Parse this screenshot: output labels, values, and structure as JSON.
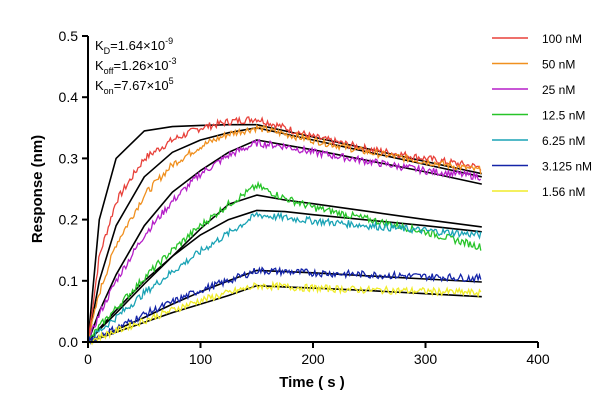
{
  "chart_data": {
    "type": "line",
    "xlabel": "Time ( s )",
    "ylabel": "Response (nm)",
    "xlim": [
      0,
      400
    ],
    "ylim": [
      0,
      0.5
    ],
    "x_ticks": [
      "0",
      "100",
      "200",
      "300",
      "400"
    ],
    "y_ticks": [
      "0.0",
      "0.1",
      "0.2",
      "0.3",
      "0.4",
      "0.5"
    ],
    "grid": false,
    "legend_position": "right",
    "association_end_s": 150,
    "annotations": {
      "kd": {
        "symbol": "K",
        "sub": "D",
        "value": "=1.64×10",
        "exp": "-9"
      },
      "koff": {
        "symbol": "K",
        "sub": "off",
        "value": "=1.26×10",
        "exp": "-3"
      },
      "kon": {
        "symbol": "K",
        "sub": "on",
        "value": "=7.67×10",
        "exp": "5"
      }
    },
    "series": [
      {
        "name": "100 nM",
        "color": "#e8413a",
        "x": [
          0,
          10,
          25,
          50,
          75,
          100,
          125,
          150,
          175,
          200,
          250,
          300,
          350
        ],
        "y": [
          0,
          0.14,
          0.23,
          0.3,
          0.33,
          0.35,
          0.36,
          0.365,
          0.35,
          0.335,
          0.315,
          0.3,
          0.285
        ]
      },
      {
        "name": "50 nM",
        "color": "#f0901f",
        "x": [
          0,
          10,
          25,
          50,
          75,
          100,
          125,
          150,
          175,
          200,
          250,
          300,
          350
        ],
        "y": [
          0,
          0.08,
          0.16,
          0.24,
          0.29,
          0.32,
          0.34,
          0.35,
          0.34,
          0.33,
          0.31,
          0.295,
          0.28
        ]
      },
      {
        "name": "25 nM",
        "color": "#b51ec8",
        "x": [
          0,
          10,
          25,
          50,
          75,
          100,
          125,
          150,
          175,
          200,
          250,
          300,
          350
        ],
        "y": [
          0,
          0.045,
          0.1,
          0.175,
          0.23,
          0.275,
          0.305,
          0.325,
          0.32,
          0.31,
          0.295,
          0.28,
          0.27
        ]
      },
      {
        "name": "12.5 nM",
        "color": "#27c429",
        "x": [
          0,
          10,
          25,
          50,
          75,
          100,
          125,
          150,
          175,
          200,
          250,
          300,
          350
        ],
        "y": [
          0,
          0.025,
          0.055,
          0.105,
          0.15,
          0.19,
          0.225,
          0.255,
          0.235,
          0.22,
          0.2,
          0.18,
          0.155
        ]
      },
      {
        "name": "6.25 nM",
        "color": "#1aa3b5",
        "x": [
          0,
          10,
          25,
          50,
          75,
          100,
          125,
          150,
          175,
          200,
          250,
          300,
          350
        ],
        "y": [
          0,
          0.018,
          0.04,
          0.08,
          0.115,
          0.148,
          0.178,
          0.208,
          0.203,
          0.198,
          0.19,
          0.182,
          0.175
        ]
      },
      {
        "name": "3.125 nM",
        "color": "#1424a8",
        "x": [
          0,
          10,
          25,
          50,
          75,
          100,
          125,
          150,
          175,
          200,
          250,
          300,
          350
        ],
        "y": [
          0,
          0.01,
          0.022,
          0.045,
          0.065,
          0.085,
          0.1,
          0.117,
          0.115,
          0.113,
          0.11,
          0.107,
          0.104
        ]
      },
      {
        "name": "1.56 nM",
        "color": "#f0ec2a",
        "x": [
          0,
          10,
          25,
          50,
          75,
          100,
          125,
          150,
          175,
          200,
          250,
          300,
          350
        ],
        "y": [
          0,
          0.008,
          0.018,
          0.035,
          0.052,
          0.068,
          0.08,
          0.092,
          0.09,
          0.088,
          0.085,
          0.083,
          0.08
        ]
      }
    ],
    "fit_series": [
      {
        "x": [
          0,
          10,
          25,
          50,
          75,
          100,
          125,
          150,
          175,
          200,
          250,
          300,
          350
        ],
        "y": [
          0,
          0.2,
          0.3,
          0.345,
          0.352,
          0.354,
          0.355,
          0.355,
          0.345,
          0.335,
          0.315,
          0.295,
          0.275
        ]
      },
      {
        "x": [
          0,
          10,
          25,
          50,
          75,
          100,
          125,
          150,
          175,
          200,
          250,
          300,
          350
        ],
        "y": [
          0,
          0.1,
          0.19,
          0.27,
          0.31,
          0.33,
          0.342,
          0.35,
          0.34,
          0.33,
          0.31,
          0.29,
          0.27
        ]
      },
      {
        "x": [
          0,
          10,
          25,
          50,
          75,
          100,
          125,
          150,
          175,
          200,
          250,
          300,
          350
        ],
        "y": [
          0,
          0.05,
          0.11,
          0.19,
          0.245,
          0.28,
          0.31,
          0.33,
          0.322,
          0.314,
          0.296,
          0.278,
          0.258
        ]
      },
      {
        "x": [
          0,
          10,
          25,
          50,
          75,
          100,
          125,
          150,
          175,
          200,
          250,
          300,
          350
        ],
        "y": [
          0,
          0.022,
          0.052,
          0.1,
          0.14,
          0.175,
          0.2,
          0.215,
          0.213,
          0.208,
          0.199,
          0.19,
          0.18
        ]
      },
      {
        "x": [
          0,
          10,
          25,
          50,
          75,
          100,
          125,
          150,
          175,
          200,
          250,
          300,
          350
        ],
        "y": [
          0,
          0.02,
          0.047,
          0.095,
          0.14,
          0.185,
          0.225,
          0.24,
          0.232,
          0.226,
          0.213,
          0.2,
          0.188
        ]
      },
      {
        "x": [
          0,
          10,
          25,
          50,
          75,
          100,
          125,
          150,
          175,
          200,
          250,
          300,
          350
        ],
        "y": [
          0,
          0.008,
          0.02,
          0.04,
          0.062,
          0.082,
          0.1,
          0.117,
          0.115,
          0.113,
          0.108,
          0.103,
          0.098
        ]
      },
      {
        "x": [
          0,
          10,
          25,
          50,
          75,
          100,
          125,
          150,
          175,
          200,
          250,
          300,
          350
        ],
        "y": [
          0,
          0.006,
          0.016,
          0.032,
          0.048,
          0.062,
          0.076,
          0.092,
          0.09,
          0.088,
          0.084,
          0.079,
          0.074
        ]
      }
    ]
  }
}
